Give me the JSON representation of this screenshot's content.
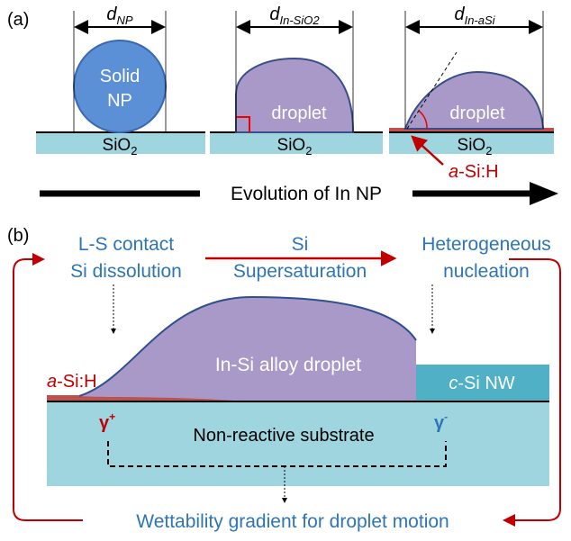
{
  "panel_a": {
    "label": "(a)",
    "nanoparticle": {
      "diameter": {
        "base": "d",
        "sub": "NP"
      },
      "lines": [
        "Solid",
        "NP"
      ],
      "substrate": {
        "base": "SiO",
        "sub": "2"
      }
    },
    "sio2_droplet": {
      "diameter": {
        "base": "d",
        "sub": "In-SiO2"
      },
      "label": "droplet",
      "substrate": {
        "base": "SiO",
        "sub": "2"
      }
    },
    "asi_droplet": {
      "diameter": {
        "base": "d",
        "sub": "In-aSi"
      },
      "label": "droplet",
      "substrate": {
        "base": "SiO",
        "sub": "2"
      },
      "layer": {
        "italic": "a",
        "text": "-Si:H"
      }
    },
    "arrow_label": "Evolution of In NP"
  },
  "panel_b": {
    "label": "(b)",
    "steps": [
      [
        "L-S contact",
        "Si dissolution"
      ],
      [
        "Si",
        "Supersaturation"
      ],
      [
        "Heterogeneous",
        "nucleation"
      ]
    ],
    "droplet": "In-Si alloy droplet",
    "layer": {
      "italic": "a",
      "text": "-Si:H"
    },
    "nanowire": {
      "italic": "c",
      "text": "-Si NW"
    },
    "substrate": "Non-reactive substrate",
    "gamma_plus": {
      "base": "γ",
      "sup": "+"
    },
    "gamma_minus": {
      "base": "γ",
      "sup": "-"
    },
    "conclusion": "Wettability gradient for droplet motion"
  }
}
